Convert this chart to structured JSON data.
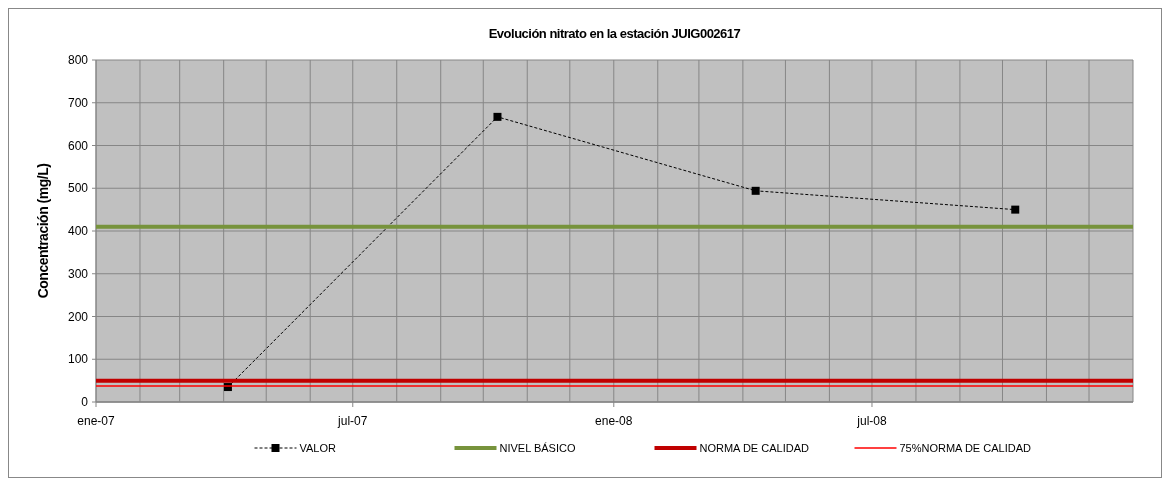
{
  "chart_data": {
    "type": "line",
    "title": "Evolución nitrato en la estación JUIG002617",
    "ylabel": "Concentración (mg/L)",
    "xlim": [
      "2007-01-01",
      "2009-01-01"
    ],
    "ylim": [
      0,
      800
    ],
    "yticks": [
      0,
      100,
      200,
      300,
      400,
      500,
      600,
      700,
      800
    ],
    "xticks": [
      {
        "value": "2007-01-01",
        "label": "ene-07"
      },
      {
        "value": "2007-02-01",
        "label": null
      },
      {
        "value": "2007-03-01",
        "label": null
      },
      {
        "value": "2007-04-01",
        "label": null
      },
      {
        "value": "2007-05-01",
        "label": null
      },
      {
        "value": "2007-06-01",
        "label": null
      },
      {
        "value": "2007-07-01",
        "label": "jul-07"
      },
      {
        "value": "2007-08-01",
        "label": null
      },
      {
        "value": "2007-09-01",
        "label": null
      },
      {
        "value": "2007-10-01",
        "label": null
      },
      {
        "value": "2007-11-01",
        "label": null
      },
      {
        "value": "2007-12-01",
        "label": null
      },
      {
        "value": "2008-01-01",
        "label": "ene-08"
      },
      {
        "value": "2008-02-01",
        "label": null
      },
      {
        "value": "2008-03-01",
        "label": null
      },
      {
        "value": "2008-04-01",
        "label": null
      },
      {
        "value": "2008-05-01",
        "label": null
      },
      {
        "value": "2008-06-01",
        "label": null
      },
      {
        "value": "2008-07-01",
        "label": "jul-08"
      },
      {
        "value": "2008-08-01",
        "label": null
      },
      {
        "value": "2008-09-01",
        "label": null
      },
      {
        "value": "2008-10-01",
        "label": null
      },
      {
        "value": "2008-11-01",
        "label": null
      },
      {
        "value": "2008-12-01",
        "label": null
      },
      {
        "value": "2009-01-01",
        "label": null
      }
    ],
    "grid": true,
    "legend": "bottom",
    "series": [
      {
        "name": "VALOR",
        "color": "#000000",
        "x": [
          "2007-04-04",
          "2007-10-11",
          "2008-04-10",
          "2008-10-10"
        ],
        "values": [
          35,
          667,
          494,
          450
        ],
        "marker": "square",
        "line_style": "dashed"
      },
      {
        "name": "NIVEL BÁSICO",
        "color": "#77933c",
        "x": [
          "2007-01-01",
          "2009-01-01"
        ],
        "values": [
          410,
          410
        ],
        "marker": "none",
        "line_style": "solid"
      },
      {
        "name": "NORMA DE CALIDAD",
        "color": "#c00000",
        "x": [
          "2007-01-01",
          "2009-01-01"
        ],
        "values": [
          50,
          50
        ],
        "marker": "none",
        "line_style": "solid"
      },
      {
        "name": "75%NORMA DE CALIDAD",
        "color": "#ff0000",
        "x": [
          "2007-01-01",
          "2009-01-01"
        ],
        "values": [
          37.5,
          37.5
        ],
        "marker": "none",
        "line_style": "solid"
      }
    ]
  }
}
